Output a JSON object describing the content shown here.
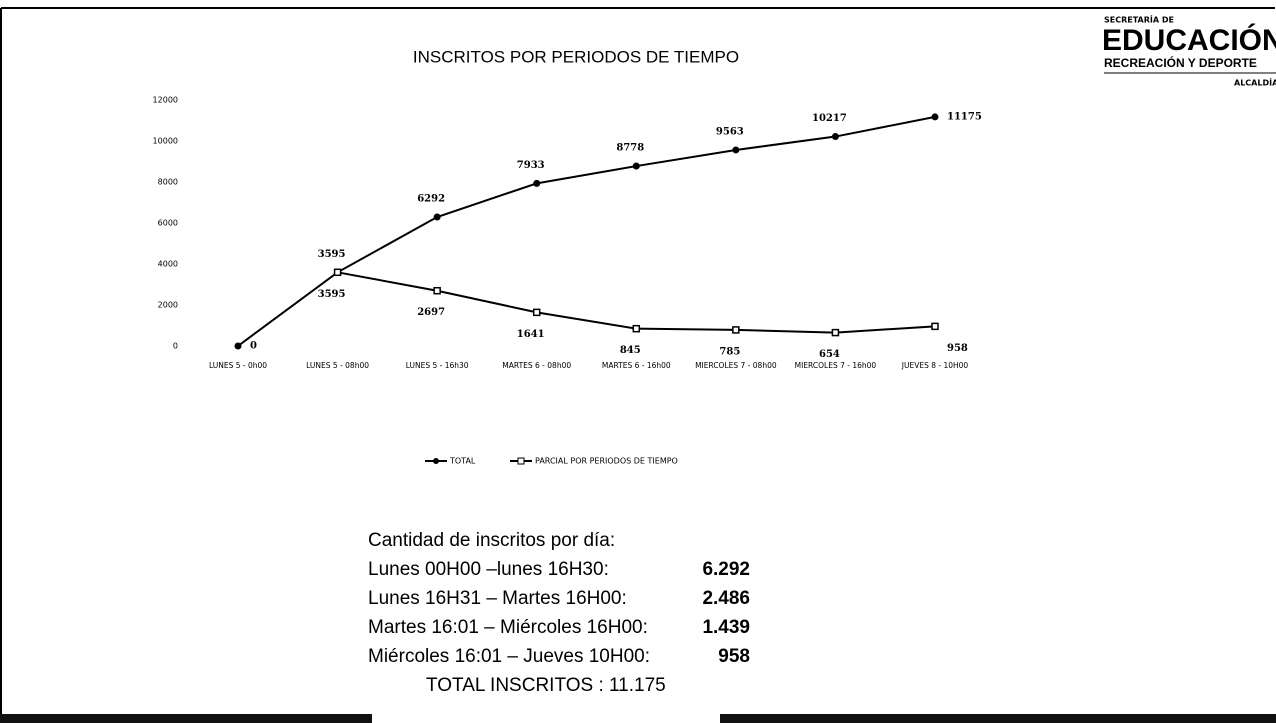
{
  "chart_data": {
    "type": "line",
    "title": "INSCRITOS POR PERIODOS DE TIEMPO",
    "categories": [
      "LUNES 5 - 0h00",
      "LUNES 5 - 08h00",
      "LUNES 5 - 16h30",
      "MARTES 6 - 08h00",
      "MARTES 6 - 16h00",
      "MIERCOLES 7 - 08h00",
      "MIERCOLES 7 - 16h00",
      "JUEVES 8 - 10H00"
    ],
    "series": [
      {
        "name": "TOTAL",
        "color": "#000000",
        "values": [
          0,
          3595,
          6292,
          7933,
          8778,
          9563,
          10217,
          11175
        ]
      },
      {
        "name": "PARCIAL POR PERIODOS DE TIEMPO",
        "color": "#000000",
        "values": [
          null,
          3595,
          2697,
          1641,
          845,
          785,
          654,
          958
        ]
      }
    ],
    "ylim": [
      0,
      12000
    ],
    "yticks": [
      0,
      2000,
      4000,
      6000,
      8000,
      10000,
      12000
    ],
    "grid": false,
    "legend": "bottom"
  },
  "summary": {
    "heading": "Cantidad de inscritos por día:",
    "rows": [
      {
        "label": "Lunes 00H00 –lunes 16H30:",
        "value": "6.292"
      },
      {
        "label": "Lunes 16H31 – Martes 16H00:",
        "value": "2.486"
      },
      {
        "label": "Martes 16:01 – Miércoles 16H00:",
        "value": "1.439"
      },
      {
        "label": "Miércoles 16:01 – Jueves 10H00:",
        "value": "958"
      }
    ],
    "total": "TOTAL INSCRITOS : 11.175"
  },
  "logo": {
    "line1": "SECRETARÍA DE",
    "line2": "EDUCACIÓN",
    "line3": "RECREACIÓN Y DEPORTE",
    "line4": "ALCALDÍA"
  }
}
